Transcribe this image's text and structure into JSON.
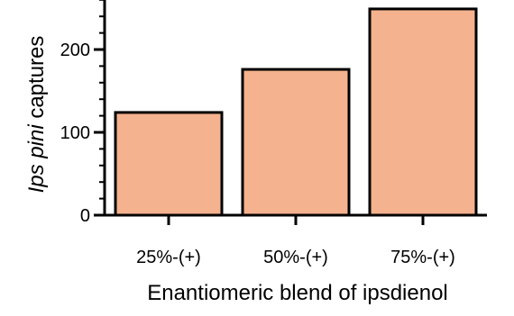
{
  "chart_data": {
    "type": "bar",
    "categories": [
      "25%-(+)",
      "50%-(+)",
      "75%-(+)"
    ],
    "values": [
      124,
      176,
      249
    ],
    "xlabel": "Enantiomeric blend of ipsdienol",
    "ylabel": {
      "italic": "Ips pini",
      "rest": " captures"
    },
    "ylim": [
      0,
      260
    ],
    "yticks_major": [
      0,
      100,
      200
    ],
    "yticks_major_labels": [
      "0",
      "100",
      "200"
    ],
    "yticks_minor_step": 20,
    "grid": false,
    "legend": "none",
    "colors": {
      "bar_fill": "#F4B28E",
      "bar_stroke": "#000000",
      "axis": "#000000"
    }
  }
}
